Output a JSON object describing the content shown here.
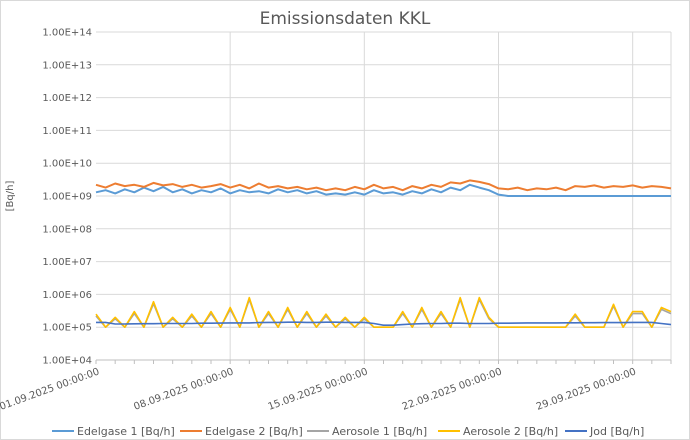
{
  "chart_data": {
    "type": "line",
    "title": "Emissionsdaten KKL",
    "xlabel": "",
    "ylabel": "[Bq/h]",
    "y_scale": "log",
    "ylim": [
      10000,
      100000000000000
    ],
    "y_ticks": [
      "1.00E+04",
      "1.00E+05",
      "1.00E+06",
      "1.00E+07",
      "1.00E+08",
      "1.00E+09",
      "1.00E+10",
      "1.00E+11",
      "1.00E+12",
      "1.00E+13",
      "1.00E+14"
    ],
    "x_range": [
      "01.09.2025 00:00:00",
      "01.10.2025 00:00:00"
    ],
    "x_ticks": [
      "01.09.2025 00:00:00",
      "08.09.2025 00:00:00",
      "15.09.2025 00:00:00",
      "22.09.2025 00:00:00",
      "29.09.2025 00:00:00"
    ],
    "grid": true,
    "legend": "bottom",
    "series": [
      {
        "name": "Edelgase 1 [Bq/h]",
        "color": "#5B9BD5",
        "values": [
          1300000000.0,
          1500000000.0,
          1200000000.0,
          1600000000.0,
          1300000000.0,
          1800000000.0,
          1400000000.0,
          1900000000.0,
          1300000000.0,
          1600000000.0,
          1200000000.0,
          1500000000.0,
          1300000000.0,
          1700000000.0,
          1200000000.0,
          1500000000.0,
          1300000000.0,
          1400000000.0,
          1200000000.0,
          1600000000.0,
          1300000000.0,
          1500000000.0,
          1200000000.0,
          1400000000.0,
          1100000000.0,
          1200000000.0,
          1100000000.0,
          1300000000.0,
          1100000000.0,
          1500000000.0,
          1200000000.0,
          1300000000.0,
          1100000000.0,
          1400000000.0,
          1200000000.0,
          1600000000.0,
          1300000000.0,
          1800000000.0,
          1500000000.0,
          2200000000.0,
          1800000000.0,
          1500000000.0,
          1100000000.0,
          1000000000.0,
          1000000000.0,
          1000000000.0,
          1000000000.0,
          1000000000.0,
          1000000000.0,
          1000000000.0,
          1000000000.0,
          1000000000.0,
          1000000000.0,
          1000000000.0,
          1000000000.0,
          1000000000.0,
          1000000000.0,
          1000000000.0,
          1000000000.0,
          1000000000.0,
          1000000000.0
        ]
      },
      {
        "name": "Edelgase 2 [Bq/h]",
        "color": "#ED7D31",
        "values": [
          2200000000.0,
          1800000000.0,
          2400000000.0,
          2000000000.0,
          2200000000.0,
          1900000000.0,
          2500000000.0,
          2100000000.0,
          2300000000.0,
          1900000000.0,
          2200000000.0,
          1800000000.0,
          2000000000.0,
          2300000000.0,
          1800000000.0,
          2200000000.0,
          1700000000.0,
          2400000000.0,
          1800000000.0,
          2000000000.0,
          1700000000.0,
          1900000000.0,
          1600000000.0,
          1800000000.0,
          1500000000.0,
          1700000000.0,
          1500000000.0,
          1900000000.0,
          1600000000.0,
          2200000000.0,
          1700000000.0,
          1900000000.0,
          1500000000.0,
          2000000000.0,
          1700000000.0,
          2200000000.0,
          1900000000.0,
          2600000000.0,
          2400000000.0,
          3000000000.0,
          2700000000.0,
          2300000000.0,
          1700000000.0,
          1600000000.0,
          1800000000.0,
          1500000000.0,
          1700000000.0,
          1600000000.0,
          1800000000.0,
          1500000000.0,
          2000000000.0,
          1900000000.0,
          2100000000.0,
          1800000000.0,
          2000000000.0,
          1900000000.0,
          2100000000.0,
          1800000000.0,
          2000000000.0,
          1900000000.0,
          1700000000.0
        ]
      },
      {
        "name": "Aerosole 1 [Bq/h]",
        "color": "#A5A5A5",
        "values": [
          220000.0,
          100000.0,
          180000.0,
          100000.0,
          260000.0,
          100000.0,
          520000.0,
          100000.0,
          180000.0,
          100000.0,
          220000.0,
          100000.0,
          260000.0,
          100000.0,
          350000.0,
          100000.0,
          700000.0,
          100000.0,
          260000.0,
          100000.0,
          350000.0,
          100000.0,
          260000.0,
          100000.0,
          220000.0,
          100000.0,
          180000.0,
          100000.0,
          180000.0,
          100000.0,
          100000.0,
          100000.0,
          260000.0,
          100000.0,
          350000.0,
          100000.0,
          260000.0,
          100000.0,
          700000.0,
          100000.0,
          700000.0,
          180000.0,
          100000.0,
          100000.0,
          100000.0,
          100000.0,
          100000.0,
          100000.0,
          100000.0,
          100000.0,
          220000.0,
          100000.0,
          100000.0,
          100000.0,
          440000.0,
          100000.0,
          260000.0,
          260000.0,
          100000.0,
          350000.0,
          260000.0
        ]
      },
      {
        "name": "Aerosole 2 [Bq/h]",
        "color": "#FFC000",
        "values": [
          250000.0,
          100000.0,
          200000.0,
          100000.0,
          300000.0,
          100000.0,
          600000.0,
          100000.0,
          200000.0,
          100000.0,
          250000.0,
          100000.0,
          300000.0,
          100000.0,
          400000.0,
          100000.0,
          800000.0,
          100000.0,
          300000.0,
          100000.0,
          400000.0,
          100000.0,
          300000.0,
          100000.0,
          250000.0,
          100000.0,
          200000.0,
          100000.0,
          200000.0,
          100000.0,
          100000.0,
          100000.0,
          300000.0,
          100000.0,
          400000.0,
          100000.0,
          300000.0,
          100000.0,
          800000.0,
          100000.0,
          800000.0,
          200000.0,
          100000.0,
          100000.0,
          100000.0,
          100000.0,
          100000.0,
          100000.0,
          100000.0,
          100000.0,
          250000.0,
          100000.0,
          100000.0,
          100000.0,
          500000.0,
          100000.0,
          300000.0,
          300000.0,
          100000.0,
          400000.0,
          300000.0
        ]
      },
      {
        "name": "Jod [Bq/h]",
        "color": "#4472C4",
        "values": [
          140000.0,
          140000.0,
          125000.0,
          125000.0,
          127000.0,
          128000.0,
          128000.0,
          130000.0,
          130000.0,
          130000.0,
          130000.0,
          132000.0,
          132000.0,
          133000.0,
          135000.0,
          135000.0,
          135000.0,
          138000.0,
          140000.0,
          140000.0,
          142000.0,
          142000.0,
          140000.0,
          140000.0,
          142000.0,
          142000.0,
          140000.0,
          140000.0,
          140000.0,
          130000.0,
          115000.0,
          115000.0,
          120000.0,
          125000.0,
          128000.0,
          130000.0,
          130000.0,
          132000.0,
          132000.0,
          130000.0,
          130000.0,
          130000.0,
          132000.0,
          132000.0,
          133000.0,
          135000.0,
          135000.0,
          135000.0,
          135000.0,
          136000.0,
          136000.0,
          137000.0,
          137000.0,
          138000.0,
          138000.0,
          138000.0,
          140000.0,
          140000.0,
          140000.0,
          130000.0,
          120000.0
        ]
      }
    ]
  }
}
